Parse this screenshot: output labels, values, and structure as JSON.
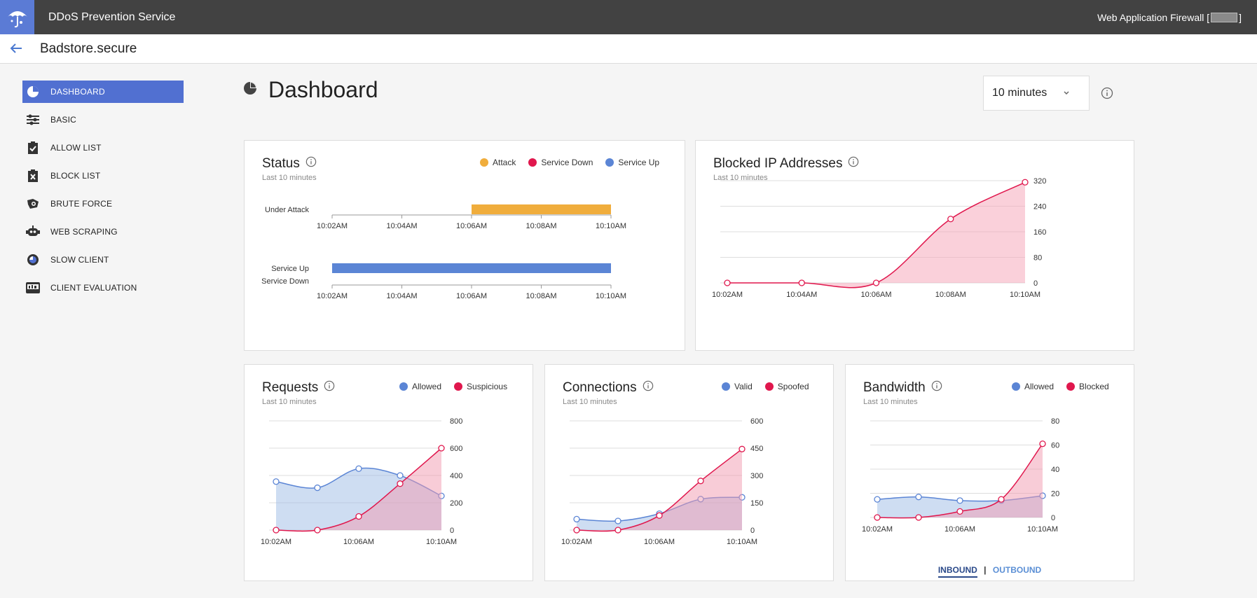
{
  "topbar": {
    "app_title": "DDoS Prevention Service",
    "product": "Web Application Firewall [",
    "product_close": "]"
  },
  "subheader": {
    "site_name": "Badstore.secure"
  },
  "sidebar": {
    "items": [
      {
        "label": "DASHBOARD",
        "icon": "pie-chart-icon",
        "active": true
      },
      {
        "label": "BASIC",
        "icon": "sliders-icon"
      },
      {
        "label": "ALLOW LIST",
        "icon": "clipboard-check-icon"
      },
      {
        "label": "BLOCK LIST",
        "icon": "clipboard-x-icon"
      },
      {
        "label": "BRUTE FORCE",
        "icon": "brute-force-icon"
      },
      {
        "label": "WEB SCRAPING",
        "icon": "robot-icon"
      },
      {
        "label": "SLOW CLIENT",
        "icon": "speedometer-icon"
      },
      {
        "label": "CLIENT EVALUATION",
        "icon": "evaluation-icon"
      }
    ]
  },
  "page": {
    "title": "Dashboard",
    "range": "10 minutes"
  },
  "colors": {
    "attack": "#f0ad3c",
    "down": "#e0174d",
    "up": "#5b85d5",
    "accent": "#5170d1",
    "topbar": "#424242"
  },
  "status": {
    "title": "Status",
    "subtitle": "Last 10 minutes",
    "legend": [
      "Attack",
      "Service Down",
      "Service Up"
    ],
    "rows": [
      {
        "label_top": "Under Attack",
        "label_bottom": ""
      },
      {
        "label_top": "Service Up",
        "label_bottom": "Service Down"
      }
    ],
    "ticks": [
      "10:02AM",
      "10:04AM",
      "10:06AM",
      "10:08AM",
      "10:10AM"
    ]
  },
  "blocked": {
    "title": "Blocked IP Addresses",
    "subtitle": "Last 10 minutes"
  },
  "requests": {
    "title": "Requests",
    "subtitle": "Last 10 minutes",
    "legend": [
      "Allowed",
      "Suspicious"
    ]
  },
  "connections": {
    "title": "Connections",
    "subtitle": "Last 10 minutes",
    "legend": [
      "Valid",
      "Spoofed"
    ]
  },
  "bandwidth": {
    "title": "Bandwidth",
    "subtitle": "Last 10 minutes",
    "legend": [
      "Allowed",
      "Blocked"
    ],
    "tab_active": "INBOUND",
    "tab_sep": "|",
    "tab_inactive": "OUTBOUND"
  },
  "chart_data": [
    {
      "type": "bar",
      "title": "Status",
      "x": [
        "10:02AM",
        "10:04AM",
        "10:06AM",
        "10:08AM",
        "10:10AM"
      ],
      "rows": [
        {
          "name": "Under Attack",
          "segments": [
            {
              "state": "Attack",
              "from": "10:06AM",
              "to": "10:10AM"
            }
          ]
        },
        {
          "name": "Service Up / Service Down",
          "segments": [
            {
              "state": "Service Up",
              "from": "10:02AM",
              "to": "10:10AM"
            }
          ]
        }
      ]
    },
    {
      "type": "area",
      "title": "Blocked IP Addresses",
      "x": [
        "10:02AM",
        "10:04AM",
        "10:06AM",
        "10:08AM",
        "10:10AM"
      ],
      "ylim": [
        0,
        320
      ],
      "yticks": [
        0,
        80,
        160,
        240,
        320
      ],
      "series": [
        {
          "values": [
            0,
            0,
            0,
            200,
            315
          ]
        }
      ]
    },
    {
      "type": "area",
      "title": "Requests",
      "x": [
        "10:02AM",
        "10:04AM",
        "10:06AM",
        "10:08AM",
        "10:10AM"
      ],
      "xticks": [
        "10:02AM",
        "10:06AM",
        "10:10AM"
      ],
      "ylim": [
        0,
        800
      ],
      "yticks": [
        0,
        200,
        400,
        600,
        800
      ],
      "series": [
        {
          "name": "Allowed",
          "values": [
            355,
            310,
            450,
            400,
            250
          ]
        },
        {
          "name": "Suspicious",
          "values": [
            0,
            0,
            100,
            340,
            600
          ]
        }
      ]
    },
    {
      "type": "area",
      "title": "Connections",
      "x": [
        "10:02AM",
        "10:04AM",
        "10:06AM",
        "10:08AM",
        "10:10AM"
      ],
      "xticks": [
        "10:02AM",
        "10:06AM",
        "10:10AM"
      ],
      "ylim": [
        0,
        600
      ],
      "yticks": [
        0,
        150,
        300,
        450,
        600
      ],
      "series": [
        {
          "name": "Valid",
          "values": [
            60,
            50,
            90,
            170,
            180
          ]
        },
        {
          "name": "Spoofed",
          "values": [
            0,
            0,
            80,
            270,
            445
          ]
        }
      ]
    },
    {
      "type": "area",
      "title": "Bandwidth",
      "x": [
        "10:02AM",
        "10:04AM",
        "10:06AM",
        "10:08AM",
        "10:10AM"
      ],
      "xticks": [
        "10:02AM",
        "10:06AM",
        "10:10AM"
      ],
      "ylim": [
        0,
        80
      ],
      "yticks": [
        0,
        20,
        40,
        60,
        80
      ],
      "series": [
        {
          "name": "Allowed",
          "values": [
            15,
            17,
            14,
            14,
            18
          ]
        },
        {
          "name": "Blocked",
          "values": [
            0,
            0,
            5,
            15,
            61
          ]
        }
      ]
    }
  ]
}
